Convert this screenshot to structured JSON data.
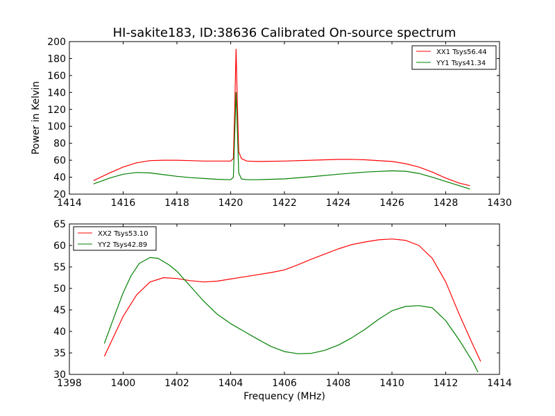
{
  "chart_data": [
    {
      "type": "line",
      "title": "HI-sakite183, ID:38636 Calibrated On-source spectrum",
      "xlabel": "",
      "ylabel": "Power in Kelvin",
      "xlim": [
        1414,
        1430
      ],
      "ylim": [
        20,
        200
      ],
      "xticks": [
        "1414",
        "1416",
        "1418",
        "1420",
        "1422",
        "1424",
        "1426",
        "1428",
        "1430"
      ],
      "yticks": [
        "20",
        "40",
        "60",
        "80",
        "100",
        "120",
        "140",
        "160",
        "180",
        "200"
      ],
      "legend_position": "top-right",
      "grid": false,
      "series": [
        {
          "name": "XX1 Tsys56.44",
          "color": "#ff0000",
          "x": [
            1414.9,
            1415.5,
            1416.0,
            1416.5,
            1417.0,
            1417.5,
            1418.0,
            1418.5,
            1419.0,
            1419.5,
            1420.0,
            1420.1,
            1420.15,
            1420.2,
            1420.25,
            1420.3,
            1420.4,
            1420.6,
            1421.0,
            1422.0,
            1423.0,
            1424.0,
            1424.5,
            1425.0,
            1426.0,
            1426.5,
            1427.0,
            1427.5,
            1428.0,
            1428.5,
            1428.9
          ],
          "y": [
            36,
            45,
            52,
            57,
            59.5,
            60,
            60,
            59.5,
            59,
            59,
            59,
            62,
            120,
            191,
            125,
            70,
            62,
            59,
            58.5,
            59,
            60,
            61,
            61,
            60.5,
            58.5,
            56,
            52,
            46,
            39,
            33,
            30
          ]
        },
        {
          "name": "YY1 Tsys41.34",
          "color": "#008000",
          "x": [
            1414.9,
            1415.5,
            1416.0,
            1416.5,
            1417.0,
            1417.5,
            1418.0,
            1418.5,
            1419.0,
            1419.5,
            1420.0,
            1420.1,
            1420.15,
            1420.2,
            1420.25,
            1420.3,
            1420.4,
            1420.6,
            1421.0,
            1422.0,
            1423.0,
            1424.0,
            1425.0,
            1426.0,
            1426.5,
            1427.0,
            1427.5,
            1428.0,
            1428.5,
            1428.9
          ],
          "y": [
            32,
            39,
            43.5,
            45.5,
            45,
            43,
            41,
            39.5,
            38.5,
            37.5,
            37,
            40,
            90,
            140,
            95,
            45,
            38,
            37,
            37,
            38,
            40.5,
            43.5,
            46,
            47.5,
            47,
            44.5,
            40,
            35,
            30,
            26
          ]
        }
      ]
    },
    {
      "type": "line",
      "title": "",
      "xlabel": "Frequency (MHz)",
      "ylabel": "",
      "xlim": [
        1398,
        1414
      ],
      "ylim": [
        30,
        65
      ],
      "xticks": [
        "1398",
        "1400",
        "1402",
        "1404",
        "1406",
        "1408",
        "1410",
        "1412",
        "1414"
      ],
      "yticks": [
        "30",
        "35",
        "40",
        "45",
        "50",
        "55",
        "60",
        "65"
      ],
      "legend_position": "top-left",
      "grid": false,
      "series": [
        {
          "name": "XX2 Tsys53.10",
          "color": "#ff0000",
          "x": [
            1399.3,
            1399.7,
            1400.0,
            1400.5,
            1401.0,
            1401.5,
            1402.0,
            1402.5,
            1403.0,
            1403.5,
            1404.0,
            1404.5,
            1405.0,
            1405.5,
            1406.0,
            1406.5,
            1407.0,
            1407.5,
            1408.0,
            1408.5,
            1409.0,
            1409.5,
            1410.0,
            1410.5,
            1411.0,
            1411.5,
            1412.0,
            1412.5,
            1413.0,
            1413.3
          ],
          "y": [
            34.2,
            39.5,
            43.5,
            48.5,
            51.5,
            52.5,
            52.3,
            51.8,
            51.5,
            51.7,
            52.2,
            52.7,
            53.2,
            53.7,
            54.3,
            55.5,
            56.8,
            58.0,
            59.2,
            60.2,
            60.8,
            61.3,
            61.5,
            61.2,
            60.0,
            57.0,
            51.5,
            44.0,
            37.0,
            33.0
          ]
        },
        {
          "name": "YY2 Tsys42.89",
          "color": "#008000",
          "x": [
            1399.3,
            1399.7,
            1400.0,
            1400.3,
            1400.6,
            1401.0,
            1401.3,
            1401.7,
            1402.0,
            1402.5,
            1403.0,
            1403.5,
            1404.0,
            1404.5,
            1405.0,
            1405.5,
            1406.0,
            1406.5,
            1407.0,
            1407.5,
            1408.0,
            1408.5,
            1409.0,
            1409.5,
            1410.0,
            1410.5,
            1411.0,
            1411.5,
            1412.0,
            1412.5,
            1413.0,
            1413.2
          ],
          "y": [
            37.2,
            44.0,
            49.0,
            53.0,
            55.8,
            57.2,
            57.0,
            55.5,
            54.0,
            50.5,
            47.0,
            44.0,
            41.8,
            40.0,
            38.2,
            36.5,
            35.3,
            34.8,
            34.9,
            35.6,
            36.8,
            38.5,
            40.5,
            42.8,
            44.8,
            45.8,
            46.0,
            45.5,
            42.5,
            38.0,
            33.0,
            30.5
          ]
        }
      ]
    }
  ]
}
